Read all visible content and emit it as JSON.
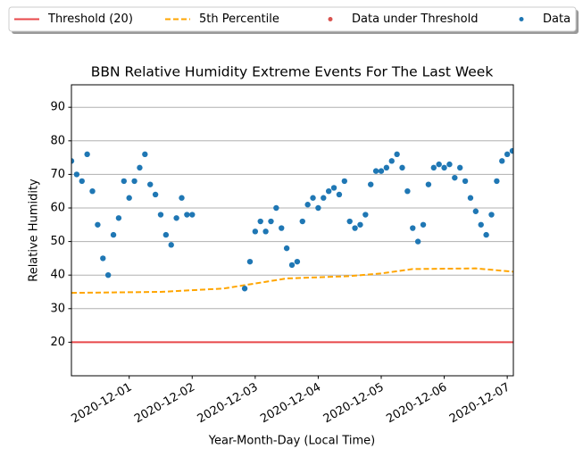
{
  "chart_data": {
    "type": "scatter",
    "title": "BBN Relative Humidity Extreme Events For The Last Week",
    "xlabel": "Year-Month-Day (Local Time)",
    "ylabel": "Relative Humidity",
    "xlim": [
      "2020-11-30 02:00",
      "2020-12-07 02:20"
    ],
    "xticks": [
      "2020-12-01",
      "2020-12-02",
      "2020-12-03",
      "2020-12-04",
      "2020-12-05",
      "2020-12-06",
      "2020-12-07"
    ],
    "ylim": [
      10,
      96.7
    ],
    "yticks": [
      20,
      30,
      40,
      50,
      60,
      70,
      80,
      90
    ],
    "grid": true,
    "legend": "top",
    "series": [
      {
        "name": "Threshold (20)",
        "kind": "line",
        "color": "#e8474a",
        "x": [
          "2020-11-30 02:00",
          "2020-12-07 02:20"
        ],
        "values": [
          20,
          20
        ]
      },
      {
        "name": "5th Percentile",
        "kind": "dashed-line",
        "color": "#ffa500",
        "x": [
          "2020-11-30 02:00",
          "2020-12-01 12:00",
          "2020-12-02 12:00",
          "2020-12-03 00:00",
          "2020-12-03 12:00",
          "2020-12-04 12:00",
          "2020-12-05 00:00",
          "2020-12-05 12:00",
          "2020-12-06 12:00",
          "2020-12-07 02:20"
        ],
        "values": [
          34.7,
          35,
          36,
          37.5,
          39,
          39.7,
          40.5,
          41.8,
          42,
          41
        ]
      },
      {
        "name": "Data under Threshold",
        "kind": "points",
        "color": "#d9534f",
        "x": [],
        "values": []
      },
      {
        "name": "Data",
        "kind": "points",
        "color": "#1f77b4",
        "x": [
          "2020-11-30 02:00",
          "2020-11-30 04:00",
          "2020-11-30 06:00",
          "2020-11-30 08:00",
          "2020-11-30 10:00",
          "2020-11-30 12:00",
          "2020-11-30 14:00",
          "2020-11-30 16:00",
          "2020-11-30 18:00",
          "2020-11-30 20:00",
          "2020-11-30 22:00",
          "2020-12-01 00:00",
          "2020-12-01 02:00",
          "2020-12-01 04:00",
          "2020-12-01 06:00",
          "2020-12-01 08:00",
          "2020-12-01 10:00",
          "2020-12-01 12:00",
          "2020-12-01 14:00",
          "2020-12-01 16:00",
          "2020-12-01 18:00",
          "2020-12-01 20:00",
          "2020-12-01 22:00",
          "2020-12-02 00:00",
          "2020-12-02 02:00",
          "2020-12-02 04:00",
          "2020-12-02 06:00",
          "2020-12-02 08:00",
          "2020-12-02 10:00",
          "2020-12-02 12:00",
          "2020-12-02 14:00",
          "2020-12-02 16:00",
          "2020-12-02 18:00",
          "2020-12-02 20:00",
          "2020-12-02 22:00",
          "2020-12-03 00:00",
          "2020-12-03 02:00",
          "2020-12-03 04:00",
          "2020-12-03 06:00",
          "2020-12-03 08:00",
          "2020-12-03 10:00",
          "2020-12-03 12:00",
          "2020-12-03 14:00",
          "2020-12-03 16:00",
          "2020-12-03 18:00",
          "2020-12-03 20:00",
          "2020-12-03 22:00",
          "2020-12-04 00:00",
          "2020-12-04 02:00",
          "2020-12-04 04:00",
          "2020-12-04 06:00",
          "2020-12-04 08:00",
          "2020-12-04 10:00",
          "2020-12-04 12:00",
          "2020-12-04 14:00",
          "2020-12-04 16:00",
          "2020-12-04 18:00",
          "2020-12-04 20:00",
          "2020-12-04 22:00",
          "2020-12-05 00:00",
          "2020-12-05 02:00",
          "2020-12-05 04:00",
          "2020-12-05 06:00",
          "2020-12-05 08:00",
          "2020-12-05 10:00",
          "2020-12-05 12:00",
          "2020-12-05 14:00",
          "2020-12-05 16:00",
          "2020-12-05 18:00",
          "2020-12-05 20:00",
          "2020-12-05 22:00",
          "2020-12-06 00:00",
          "2020-12-06 02:00",
          "2020-12-06 04:00",
          "2020-12-06 06:00",
          "2020-12-06 08:00",
          "2020-12-06 10:00",
          "2020-12-06 12:00",
          "2020-12-06 14:00",
          "2020-12-06 16:00",
          "2020-12-06 18:00",
          "2020-12-06 20:00",
          "2020-12-06 22:00",
          "2020-12-07 00:00",
          "2020-12-07 02:00"
        ],
        "values": [
          74,
          70,
          68,
          76,
          65,
          55,
          45,
          40,
          52,
          57,
          68,
          63,
          68,
          72,
          76,
          67,
          64,
          58,
          52,
          49,
          57,
          63,
          58,
          58,
          null,
          null,
          null,
          null,
          null,
          null,
          null,
          null,
          null,
          36,
          44,
          53,
          56,
          53,
          56,
          60,
          54,
          48,
          43,
          44,
          56,
          61,
          63,
          60,
          63,
          65,
          66,
          64,
          68,
          56,
          54,
          55,
          58,
          67,
          71,
          71,
          72,
          74,
          76,
          72,
          65,
          54,
          50,
          55,
          67,
          72,
          73,
          72,
          73,
          69,
          72,
          68,
          63,
          59,
          55,
          52,
          58,
          68,
          74,
          76,
          77
        ]
      }
    ]
  }
}
